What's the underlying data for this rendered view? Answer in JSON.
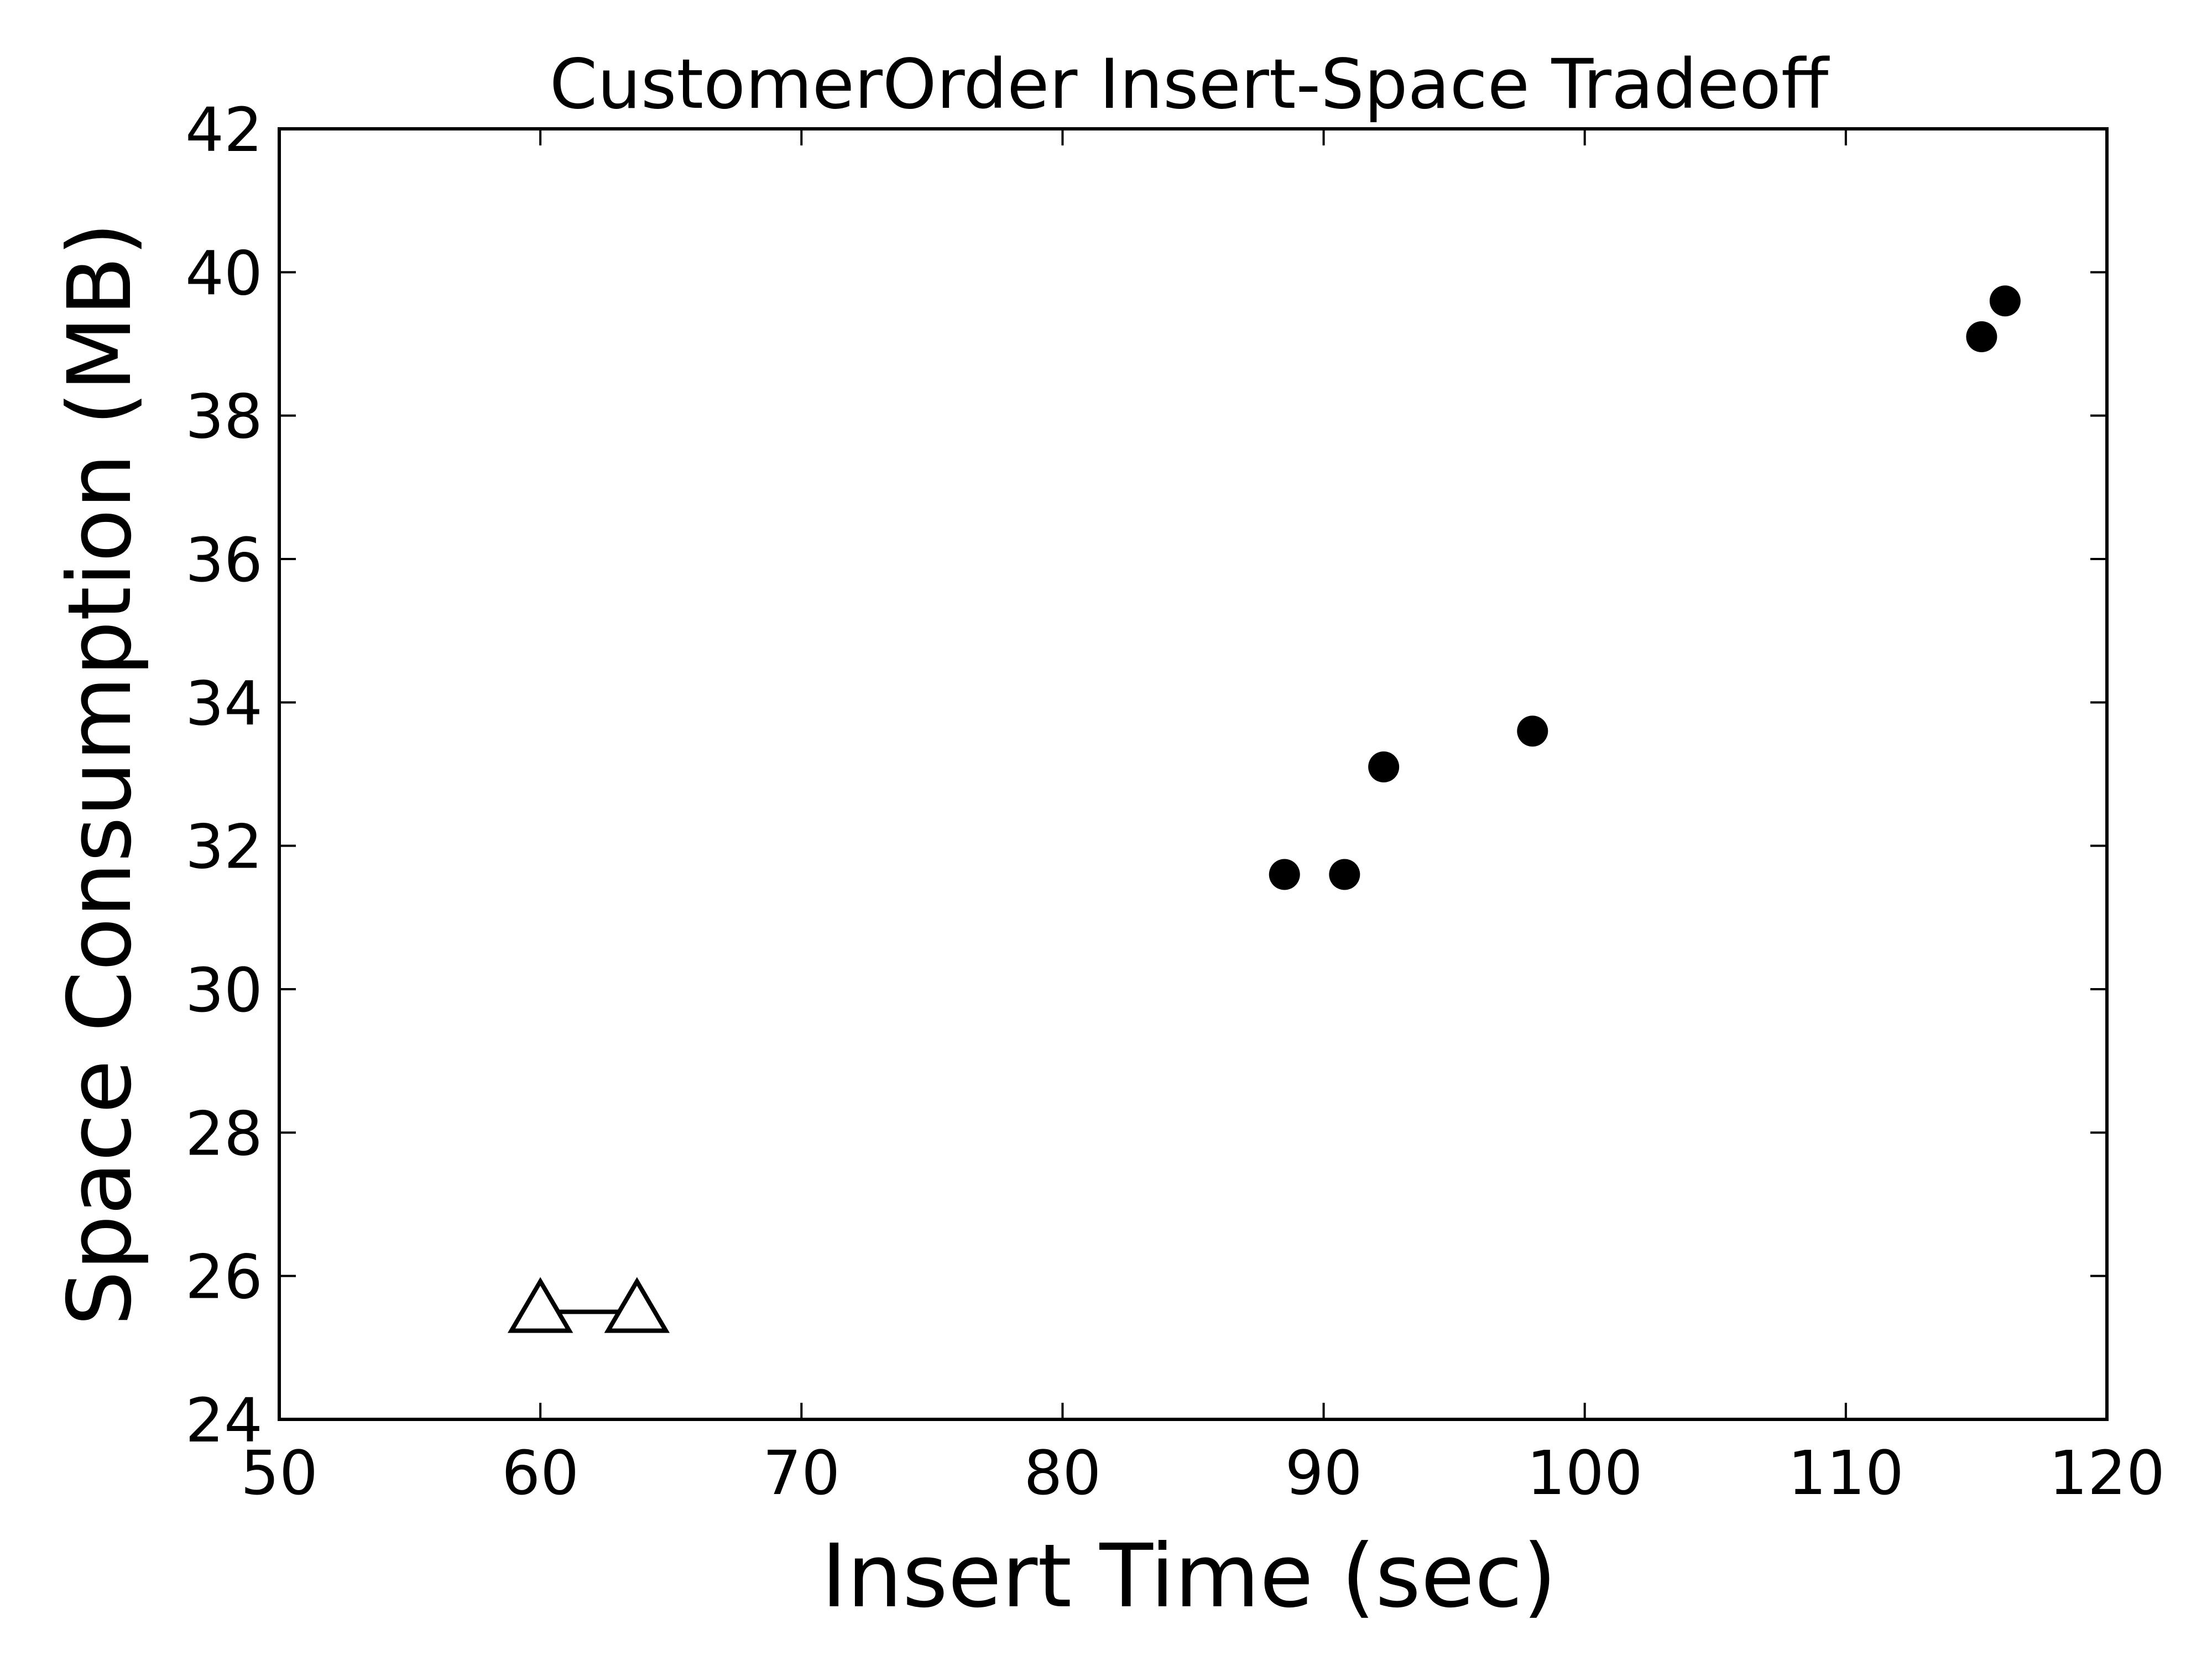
{
  "chart_data": {
    "type": "scatter",
    "title": "CustomerOrder Insert-Space Tradeoff",
    "xlabel": "Insert Time (sec)",
    "ylabel": "Space Consumption (MB)",
    "xlim": [
      50,
      120
    ],
    "ylim": [
      24,
      42
    ],
    "xticks": [
      50,
      60,
      70,
      80,
      90,
      100,
      110,
      120
    ],
    "yticks": [
      24,
      26,
      28,
      30,
      32,
      34,
      36,
      38,
      40,
      42
    ],
    "grid": false,
    "legend": "none",
    "series": [
      {
        "marker": "filled-circle",
        "color": "#000000",
        "connected": false,
        "points": [
          {
            "x": 88.5,
            "y": 31.6
          },
          {
            "x": 90.8,
            "y": 31.6
          },
          {
            "x": 92.3,
            "y": 33.1
          },
          {
            "x": 98.0,
            "y": 33.6
          },
          {
            "x": 115.2,
            "y": 39.1
          },
          {
            "x": 116.1,
            "y": 39.6
          }
        ]
      },
      {
        "marker": "open-triangle",
        "color": "#000000",
        "connected": true,
        "points": [
          {
            "x": 60.0,
            "y": 25.5
          },
          {
            "x": 63.7,
            "y": 25.5
          }
        ]
      }
    ]
  }
}
